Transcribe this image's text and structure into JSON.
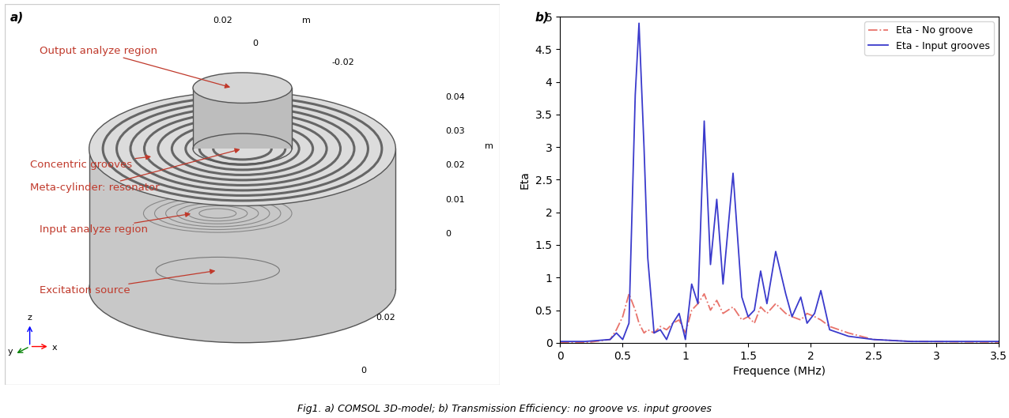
{
  "caption": "Fig1. a) COMSOL 3D-model; b) Transmission Efficiency: no groove vs. input grooves",
  "diagram": {
    "panel_label": "a)",
    "labels": [
      "Output analyze region",
      "Concentric grooves",
      "Meta-cylinder: resonator",
      "Input analyze region",
      "Excitation source"
    ],
    "top_axis": [
      "0.02",
      "m",
      "0",
      "-0.02"
    ],
    "right_axis": [
      "0.04",
      "0.03",
      "0.02",
      "0.01",
      "0",
      "m"
    ],
    "bottom_axis": [
      "0.02",
      "0"
    ],
    "triad": [
      "y",
      "z",
      "x"
    ]
  },
  "chart_data": {
    "panel_label": "b)",
    "type": "line",
    "xlabel": "Frequence (MHz)",
    "ylabel": "Eta",
    "xlim": [
      0,
      3.5
    ],
    "ylim": [
      0,
      5
    ],
    "xticks": [
      0,
      0.5,
      1,
      1.5,
      2,
      2.5,
      3,
      3.5
    ],
    "yticks": [
      0,
      0.5,
      1,
      1.5,
      2,
      2.5,
      3,
      3.5,
      4,
      4.5,
      5
    ],
    "grid": false,
    "legend": "upper right",
    "x": [
      0,
      0.2,
      0.4,
      0.45,
      0.5,
      0.55,
      0.6,
      0.63,
      0.67,
      0.7,
      0.75,
      0.8,
      0.85,
      0.9,
      0.95,
      1.0,
      1.05,
      1.1,
      1.15,
      1.2,
      1.25,
      1.3,
      1.38,
      1.45,
      1.5,
      1.55,
      1.6,
      1.65,
      1.72,
      1.8,
      1.85,
      1.92,
      1.97,
      2.03,
      2.08,
      2.15,
      2.3,
      2.5,
      2.8,
      3.5
    ],
    "series": [
      {
        "name": "Eta - No groove",
        "color": "#e8736b",
        "line_style": "dashdot",
        "values": [
          0.0,
          0.0,
          0.05,
          0.2,
          0.4,
          0.75,
          0.5,
          0.3,
          0.15,
          0.2,
          0.15,
          0.25,
          0.2,
          0.3,
          0.35,
          0.15,
          0.5,
          0.6,
          0.75,
          0.5,
          0.65,
          0.45,
          0.55,
          0.35,
          0.4,
          0.3,
          0.55,
          0.45,
          0.6,
          0.45,
          0.4,
          0.35,
          0.45,
          0.4,
          0.35,
          0.25,
          0.15,
          0.05,
          0.02,
          0.01
        ]
      },
      {
        "name": "Eta - Input grooves",
        "color": "#3a3acc",
        "line_style": "solid",
        "values": [
          0.02,
          0.02,
          0.05,
          0.15,
          0.05,
          0.3,
          3.8,
          4.9,
          3.0,
          1.3,
          0.15,
          0.2,
          0.05,
          0.3,
          0.45,
          0.05,
          0.9,
          0.6,
          3.4,
          1.2,
          2.2,
          0.9,
          2.6,
          0.7,
          0.4,
          0.5,
          1.1,
          0.6,
          1.4,
          0.75,
          0.4,
          0.7,
          0.3,
          0.45,
          0.8,
          0.2,
          0.1,
          0.05,
          0.02,
          0.02
        ]
      }
    ]
  }
}
